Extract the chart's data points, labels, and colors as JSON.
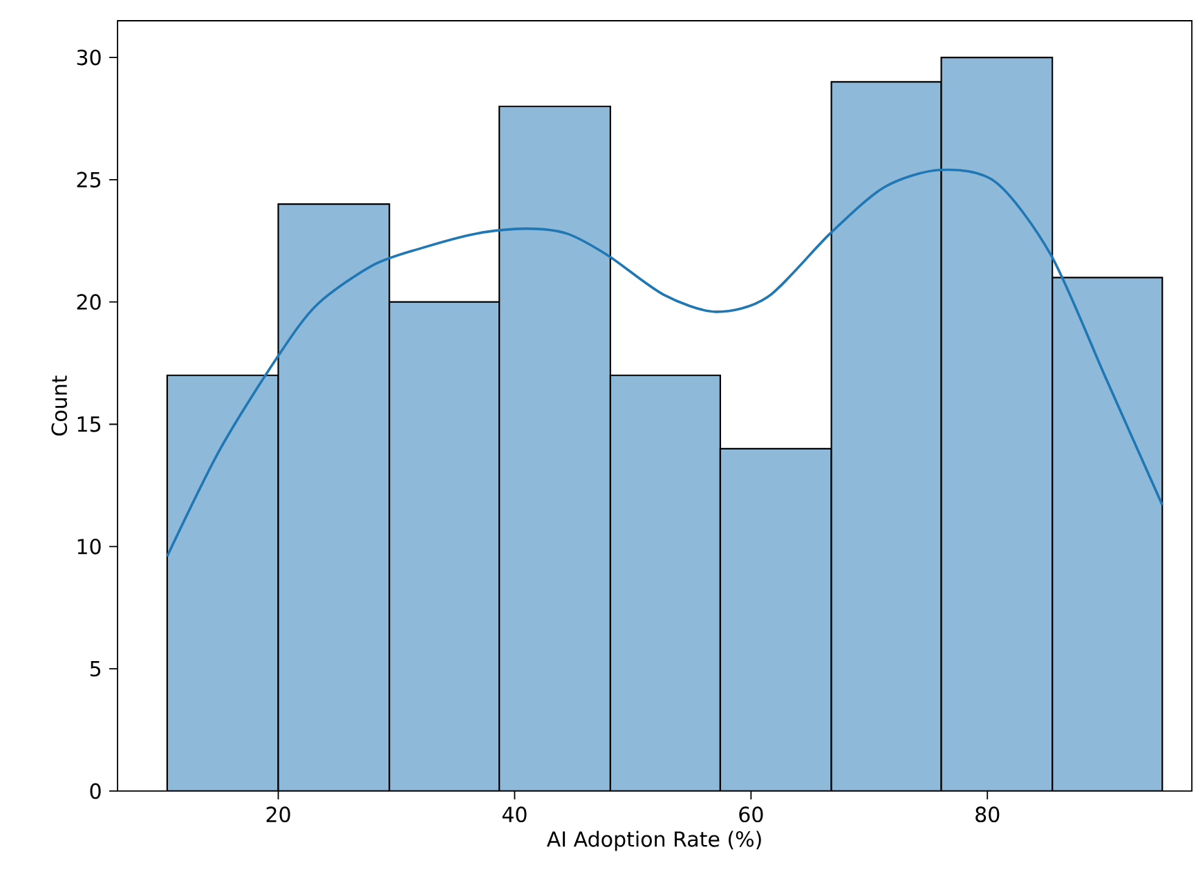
{
  "chart_data": {
    "type": "histogram",
    "xlabel": "AI Adoption Rate (%)",
    "ylabel": "Count",
    "xlim": [
      6.4,
      97.3
    ],
    "ylim": [
      0,
      31.5
    ],
    "xticks": [
      20,
      40,
      60,
      80
    ],
    "yticks": [
      0,
      5,
      10,
      15,
      20,
      25,
      30
    ],
    "series": [
      {
        "type": "histogram",
        "color": "#8fb9d9",
        "bins": [
          10.6,
          20,
          29.4,
          38.7,
          48.1,
          57.4,
          66.8,
          76.1,
          85.5,
          94.8
        ],
        "values": [
          17,
          24,
          20,
          28,
          17,
          14,
          29,
          30,
          21
        ]
      },
      {
        "type": "line",
        "color": "#1f77b4",
        "x": [
          10.6,
          15.1,
          20,
          23.3,
          28,
          32.1,
          36.8,
          40.9,
          44.4,
          47.9,
          52.6,
          57,
          61.4,
          66.7,
          71.3,
          76,
          80.7,
          85.4,
          90.1,
          94.8
        ],
        "values": [
          9.6,
          14,
          17.8,
          19.9,
          21.5,
          22.2,
          22.8,
          23,
          22.8,
          21.9,
          20.3,
          19.6,
          20.2,
          22.8,
          24.7,
          25.4,
          24.9,
          21.9,
          16.8,
          11.7
        ]
      }
    ]
  }
}
